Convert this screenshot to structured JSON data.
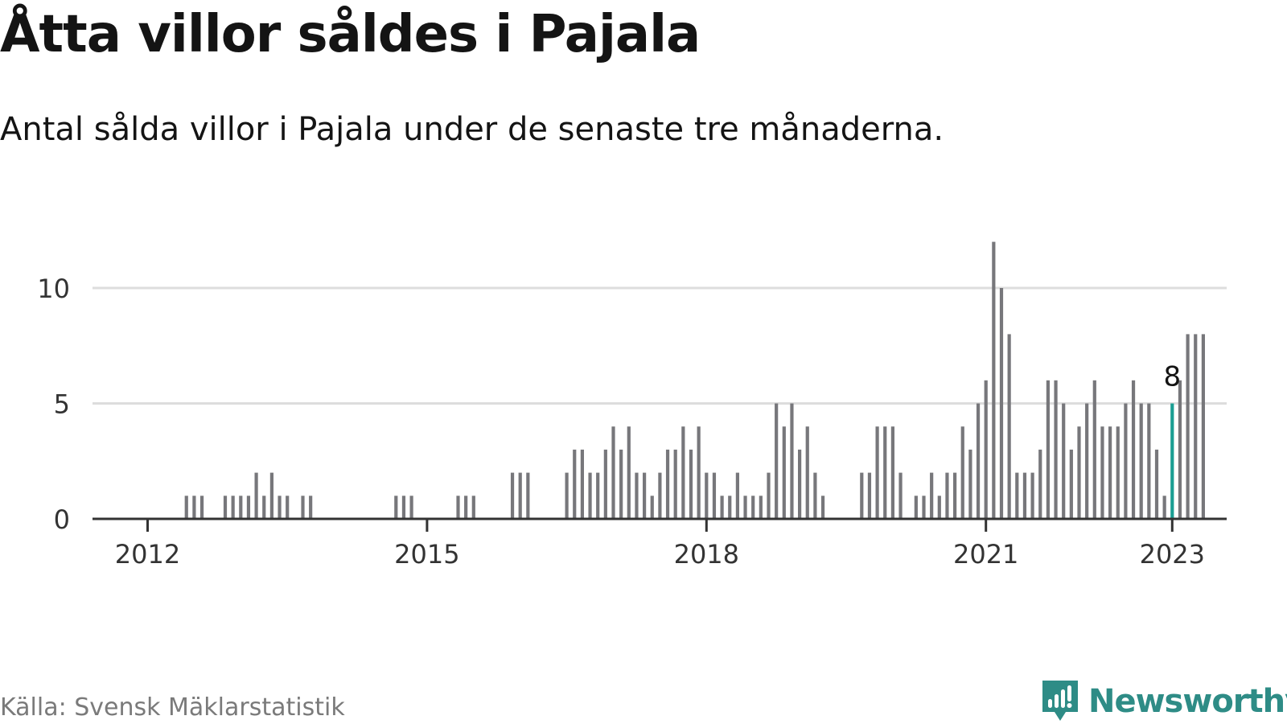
{
  "title": "Åtta villor såldes i Pajala",
  "subtitle": "Antal sålda villor i Pajala under de senaste tre månaderna.",
  "source": "Källa: Svensk Mäklarstatistik",
  "brand": {
    "name": "Newsworthy",
    "icon": "newsworthy-logo-icon"
  },
  "colors": {
    "bar": "#77777b",
    "highlight": "#1a9e93",
    "grid": "#dddddd",
    "axis": "#333333",
    "brand": "#2e8c86"
  },
  "chart_data": {
    "type": "bar",
    "title": "Åtta villor såldes i Pajala",
    "xlabel": "",
    "ylabel": "",
    "ylim": [
      0,
      12
    ],
    "yticks": [
      0,
      5,
      10
    ],
    "x_start": "2011-05",
    "xticks": [
      {
        "label": "2012",
        "index": 8
      },
      {
        "label": "2015",
        "index": 44
      },
      {
        "label": "2018",
        "index": 80
      },
      {
        "label": "2021",
        "index": 116
      },
      {
        "label": "2023",
        "index": 140
      }
    ],
    "values": [
      0,
      0,
      0,
      0,
      0,
      0,
      0,
      0,
      0,
      0,
      0,
      0,
      0,
      1,
      1,
      1,
      0,
      0,
      1,
      1,
      1,
      1,
      2,
      1,
      2,
      1,
      1,
      0,
      1,
      1,
      0,
      0,
      0,
      0,
      0,
      0,
      0,
      0,
      0,
      0,
      1,
      1,
      1,
      0,
      0,
      0,
      0,
      0,
      1,
      1,
      1,
      0,
      0,
      0,
      0,
      2,
      2,
      2,
      0,
      0,
      0,
      0,
      2,
      3,
      3,
      2,
      2,
      3,
      4,
      3,
      4,
      2,
      2,
      1,
      2,
      3,
      3,
      4,
      3,
      4,
      2,
      2,
      1,
      1,
      2,
      1,
      1,
      1,
      2,
      5,
      4,
      5,
      3,
      4,
      2,
      1,
      0,
      0,
      0,
      0,
      2,
      2,
      4,
      4,
      4,
      2,
      0,
      1,
      1,
      2,
      1,
      2,
      2,
      4,
      3,
      5,
      6,
      12,
      10,
      8,
      2,
      2,
      2,
      3,
      6,
      6,
      5,
      3,
      4,
      5,
      6,
      4,
      4,
      4,
      5,
      6,
      5,
      5,
      3,
      1,
      5,
      6,
      8,
      8,
      8
    ],
    "highlight": {
      "index": 140,
      "label": "8"
    }
  }
}
